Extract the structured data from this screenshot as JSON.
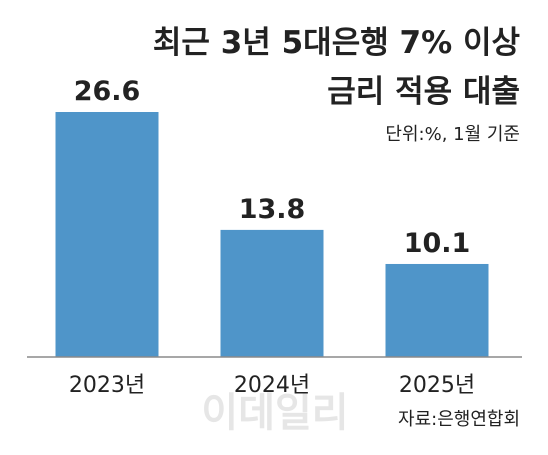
{
  "chart_data": {
    "type": "bar",
    "title_lines": [
      "최근 3년 5대은행 7% 이상",
      "금리 적용 대출"
    ],
    "unit_note": "단위:%, 1월 기준",
    "categories": [
      "2023년",
      "2024년",
      "2025년"
    ],
    "values": [
      26.6,
      13.8,
      10.1
    ],
    "value_labels": [
      "26.6",
      "13.8",
      "10.1"
    ],
    "xlabel": "",
    "ylabel": "",
    "ylim": [
      0,
      26.6
    ],
    "grid": false,
    "legend": "none",
    "source": "자료:은행연합회",
    "watermark": "이데일리",
    "colors": {
      "bar": "#4f95c9",
      "baseline": "#8a8a8a",
      "text": "#222222",
      "watermark": "#e6e6e6"
    }
  }
}
